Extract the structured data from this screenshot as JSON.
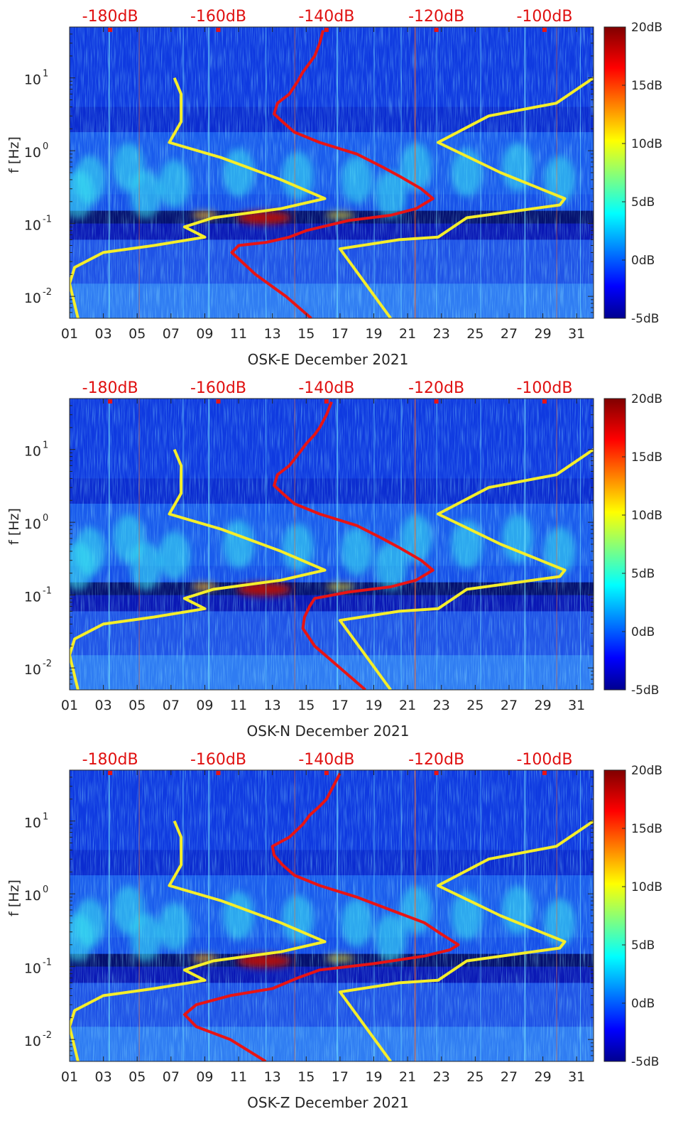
{
  "colors": {
    "yellow_curve": "#f5ee2a",
    "red_curve": "#e81414",
    "db_label": "#e01010",
    "axis": "#262626"
  },
  "chart_data": [
    {
      "type": "heatmap",
      "xlabel": "OSK-E December 2021",
      "ylabel": "f [Hz]",
      "yscale": "log",
      "ylim": [
        0.005,
        50
      ],
      "xlim": [
        1,
        32
      ],
      "x_ticks": [
        "01",
        "03",
        "05",
        "07",
        "09",
        "11",
        "13",
        "15",
        "17",
        "19",
        "21",
        "23",
        "25",
        "27",
        "29",
        "31"
      ],
      "y_ticks": [
        {
          "value": 0.01,
          "base": "10",
          "exp": "-2"
        },
        {
          "value": 0.1,
          "base": "10",
          "exp": "-1"
        },
        {
          "value": 1,
          "base": "10",
          "exp": "0"
        },
        {
          "value": 10,
          "base": "10",
          "exp": "1"
        }
      ],
      "top_labels": [
        {
          "x": 3.4,
          "text": "-180dB"
        },
        {
          "x": 9.8,
          "text": "-160dB"
        },
        {
          "x": 16.2,
          "text": "-140dB"
        },
        {
          "x": 22.7,
          "text": "-120dB"
        },
        {
          "x": 29.1,
          "text": "-100dB"
        }
      ],
      "colorbar": {
        "ticks": [
          {
            "value": 20,
            "text": "20dB"
          },
          {
            "value": 15,
            "text": "15dB"
          },
          {
            "value": 10,
            "text": "10dB"
          },
          {
            "value": 5,
            "text": "5dB"
          },
          {
            "value": 0,
            "text": "0dB"
          },
          {
            "value": -5,
            "text": "-5dB"
          }
        ],
        "range": [
          -5,
          20
        ]
      },
      "curves": {
        "red": [
          [
            15.3,
            0.005
          ],
          [
            13.8,
            0.01
          ],
          [
            12.0,
            0.02
          ],
          [
            10.6,
            0.04
          ],
          [
            11.0,
            0.05
          ],
          [
            12.6,
            0.055
          ],
          [
            14.0,
            0.065
          ],
          [
            15.0,
            0.08
          ],
          [
            17.5,
            0.11
          ],
          [
            20.0,
            0.13
          ],
          [
            21.5,
            0.16
          ],
          [
            22.5,
            0.22
          ],
          [
            21.8,
            0.3
          ],
          [
            20.5,
            0.45
          ],
          [
            19.5,
            0.6
          ],
          [
            18.0,
            0.9
          ],
          [
            15.8,
            1.3
          ],
          [
            14.3,
            1.8
          ],
          [
            13.6,
            2.5
          ],
          [
            13.1,
            3.2
          ],
          [
            13.3,
            4.5
          ],
          [
            14.0,
            6
          ],
          [
            14.5,
            9
          ],
          [
            14.8,
            12
          ],
          [
            15.2,
            16
          ],
          [
            15.5,
            20
          ],
          [
            15.8,
            30
          ],
          [
            16.0,
            45
          ]
        ],
        "yellow_left": [
          [
            1.5,
            0.005
          ],
          [
            1.0,
            0.015
          ],
          [
            1.3,
            0.025
          ],
          [
            3.0,
            0.04
          ],
          [
            6.0,
            0.05
          ],
          [
            9.0,
            0.065
          ],
          [
            7.8,
            0.09
          ],
          [
            9.5,
            0.12
          ],
          [
            13.5,
            0.16
          ],
          [
            16.1,
            0.22
          ],
          [
            13.5,
            0.4
          ],
          [
            10.0,
            0.8
          ],
          [
            6.9,
            1.3
          ],
          [
            7.6,
            2.5
          ],
          [
            7.6,
            6
          ],
          [
            7.2,
            10
          ]
        ],
        "yellow_right": [
          [
            20.0,
            0.005
          ],
          [
            17.0,
            0.045
          ],
          [
            20.5,
            0.06
          ],
          [
            22.8,
            0.065
          ],
          [
            24.5,
            0.12
          ],
          [
            30.0,
            0.18
          ],
          [
            30.3,
            0.22
          ],
          [
            26.5,
            0.5
          ],
          [
            22.8,
            1.3
          ],
          [
            25.8,
            3
          ],
          [
            29.8,
            4.5
          ],
          [
            32.0,
            10
          ]
        ]
      }
    },
    {
      "type": "heatmap",
      "xlabel": "OSK-N December 2021",
      "ylabel": "f [Hz]",
      "yscale": "log",
      "ylim": [
        0.005,
        50
      ],
      "xlim": [
        1,
        32
      ],
      "x_ticks": [
        "01",
        "03",
        "05",
        "07",
        "09",
        "11",
        "13",
        "15",
        "17",
        "19",
        "21",
        "23",
        "25",
        "27",
        "29",
        "31"
      ],
      "y_ticks": [
        {
          "value": 0.01,
          "base": "10",
          "exp": "-2"
        },
        {
          "value": 0.1,
          "base": "10",
          "exp": "-1"
        },
        {
          "value": 1,
          "base": "10",
          "exp": "0"
        },
        {
          "value": 10,
          "base": "10",
          "exp": "1"
        }
      ],
      "top_labels": [
        {
          "x": 3.4,
          "text": "-180dB"
        },
        {
          "x": 9.8,
          "text": "-160dB"
        },
        {
          "x": 16.2,
          "text": "-140dB"
        },
        {
          "x": 22.7,
          "text": "-120dB"
        },
        {
          "x": 29.1,
          "text": "-100dB"
        }
      ],
      "colorbar": {
        "ticks": [
          {
            "value": 20,
            "text": "20dB"
          },
          {
            "value": 15,
            "text": "15dB"
          },
          {
            "value": 10,
            "text": "10dB"
          },
          {
            "value": 5,
            "text": "5dB"
          },
          {
            "value": 0,
            "text": "0dB"
          },
          {
            "value": -5,
            "text": "-5dB"
          }
        ],
        "range": [
          -5,
          20
        ]
      },
      "curves": {
        "red": [
          [
            18.5,
            0.005
          ],
          [
            17.0,
            0.01
          ],
          [
            15.5,
            0.02
          ],
          [
            14.8,
            0.035
          ],
          [
            14.9,
            0.05
          ],
          [
            15.2,
            0.07
          ],
          [
            15.5,
            0.09
          ],
          [
            17.5,
            0.11
          ],
          [
            20.0,
            0.13
          ],
          [
            21.5,
            0.16
          ],
          [
            22.5,
            0.22
          ],
          [
            21.8,
            0.3
          ],
          [
            20.5,
            0.45
          ],
          [
            19.5,
            0.6
          ],
          [
            18.0,
            0.9
          ],
          [
            15.8,
            1.3
          ],
          [
            14.3,
            1.8
          ],
          [
            13.6,
            2.5
          ],
          [
            13.1,
            3.2
          ],
          [
            13.3,
            4.5
          ],
          [
            14.0,
            6
          ],
          [
            14.6,
            9
          ],
          [
            15.0,
            12
          ],
          [
            15.5,
            16
          ],
          [
            15.8,
            20
          ],
          [
            16.2,
            30
          ],
          [
            16.5,
            45
          ]
        ],
        "yellow_left": [
          [
            1.5,
            0.005
          ],
          [
            1.0,
            0.015
          ],
          [
            1.3,
            0.025
          ],
          [
            3.0,
            0.04
          ],
          [
            6.0,
            0.05
          ],
          [
            9.0,
            0.065
          ],
          [
            7.8,
            0.09
          ],
          [
            9.5,
            0.12
          ],
          [
            13.5,
            0.16
          ],
          [
            16.1,
            0.22
          ],
          [
            13.5,
            0.4
          ],
          [
            10.0,
            0.8
          ],
          [
            6.9,
            1.3
          ],
          [
            7.6,
            2.5
          ],
          [
            7.6,
            6
          ],
          [
            7.2,
            10
          ]
        ],
        "yellow_right": [
          [
            20.0,
            0.005
          ],
          [
            17.0,
            0.045
          ],
          [
            20.5,
            0.06
          ],
          [
            22.8,
            0.065
          ],
          [
            24.5,
            0.12
          ],
          [
            30.0,
            0.18
          ],
          [
            30.3,
            0.22
          ],
          [
            26.5,
            0.5
          ],
          [
            22.8,
            1.3
          ],
          [
            25.8,
            3
          ],
          [
            29.8,
            4.5
          ],
          [
            32.0,
            10
          ]
        ]
      }
    },
    {
      "type": "heatmap",
      "xlabel": "OSK-Z December 2021",
      "ylabel": "f [Hz]",
      "yscale": "log",
      "ylim": [
        0.005,
        50
      ],
      "xlim": [
        1,
        32
      ],
      "x_ticks": [
        "01",
        "03",
        "05",
        "07",
        "09",
        "11",
        "13",
        "15",
        "17",
        "19",
        "21",
        "23",
        "25",
        "27",
        "29",
        "31"
      ],
      "y_ticks": [
        {
          "value": 0.01,
          "base": "10",
          "exp": "-2"
        },
        {
          "value": 0.1,
          "base": "10",
          "exp": "-1"
        },
        {
          "value": 1,
          "base": "10",
          "exp": "0"
        },
        {
          "value": 10,
          "base": "10",
          "exp": "1"
        }
      ],
      "top_labels": [
        {
          "x": 3.4,
          "text": "-180dB"
        },
        {
          "x": 9.8,
          "text": "-160dB"
        },
        {
          "x": 16.2,
          "text": "-140dB"
        },
        {
          "x": 22.7,
          "text": "-120dB"
        },
        {
          "x": 29.1,
          "text": "-100dB"
        }
      ],
      "colorbar": {
        "ticks": [
          {
            "value": 20,
            "text": "20dB"
          },
          {
            "value": 15,
            "text": "15dB"
          },
          {
            "value": 10,
            "text": "10dB"
          },
          {
            "value": 5,
            "text": "5dB"
          },
          {
            "value": 0,
            "text": "0dB"
          },
          {
            "value": -5,
            "text": "-5dB"
          }
        ],
        "range": [
          -5,
          20
        ]
      },
      "curves": {
        "red": [
          [
            12.6,
            0.005
          ],
          [
            10.5,
            0.01
          ],
          [
            8.5,
            0.015
          ],
          [
            7.8,
            0.022
          ],
          [
            8.5,
            0.03
          ],
          [
            10.5,
            0.04
          ],
          [
            13.0,
            0.05
          ],
          [
            14.5,
            0.07
          ],
          [
            15.8,
            0.09
          ],
          [
            19.0,
            0.11
          ],
          [
            22.0,
            0.14
          ],
          [
            23.5,
            0.17
          ],
          [
            24.0,
            0.2
          ],
          [
            23.0,
            0.28
          ],
          [
            22.0,
            0.4
          ],
          [
            20.0,
            0.6
          ],
          [
            18.0,
            0.9
          ],
          [
            15.8,
            1.3
          ],
          [
            14.3,
            1.8
          ],
          [
            13.6,
            2.5
          ],
          [
            13.1,
            3.4
          ],
          [
            13.0,
            4.5
          ],
          [
            14.0,
            6
          ],
          [
            14.8,
            9
          ],
          [
            15.2,
            12
          ],
          [
            15.8,
            16
          ],
          [
            16.2,
            20
          ],
          [
            16.6,
            30
          ],
          [
            17.0,
            45
          ]
        ],
        "yellow_left": [
          [
            1.5,
            0.005
          ],
          [
            1.0,
            0.015
          ],
          [
            1.3,
            0.025
          ],
          [
            3.0,
            0.04
          ],
          [
            6.0,
            0.05
          ],
          [
            9.0,
            0.065
          ],
          [
            7.8,
            0.09
          ],
          [
            9.5,
            0.12
          ],
          [
            13.5,
            0.16
          ],
          [
            16.1,
            0.22
          ],
          [
            13.5,
            0.4
          ],
          [
            10.0,
            0.8
          ],
          [
            6.9,
            1.3
          ],
          [
            7.6,
            2.5
          ],
          [
            7.6,
            6
          ],
          [
            7.2,
            10
          ]
        ],
        "yellow_right": [
          [
            20.0,
            0.005
          ],
          [
            17.0,
            0.045
          ],
          [
            20.5,
            0.06
          ],
          [
            22.8,
            0.065
          ],
          [
            24.5,
            0.12
          ],
          [
            30.0,
            0.18
          ],
          [
            30.3,
            0.22
          ],
          [
            26.5,
            0.5
          ],
          [
            22.8,
            1.3
          ],
          [
            25.8,
            3
          ],
          [
            29.8,
            4.5
          ],
          [
            32.0,
            10
          ]
        ]
      }
    }
  ]
}
